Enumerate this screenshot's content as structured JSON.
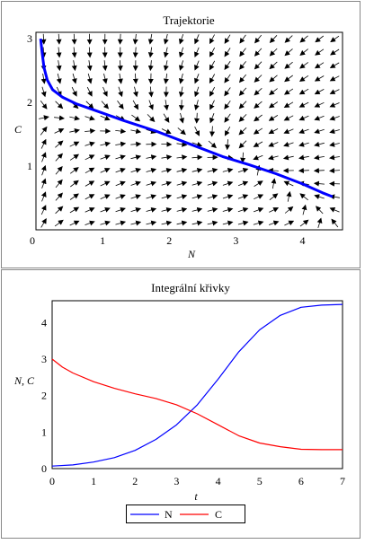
{
  "chart_data": [
    {
      "type": "line",
      "title": "Trajektorie",
      "xlabel": "N",
      "ylabel": "C",
      "xlim": [
        0,
        4.6
      ],
      "ylim": [
        0,
        3.1
      ],
      "xticks": [
        0,
        1,
        2,
        3,
        4
      ],
      "yticks": [
        1,
        2,
        3
      ],
      "direction_field": true,
      "series": [
        {
          "color": "#0000ff",
          "x": [
            0.07,
            0.09,
            0.12,
            0.17,
            0.25,
            0.4,
            0.6,
            0.9,
            1.3,
            1.8,
            2.3,
            2.8,
            3.2,
            3.6,
            4.0,
            4.3,
            4.45
          ],
          "y": [
            3.0,
            2.8,
            2.55,
            2.35,
            2.2,
            2.08,
            1.98,
            1.87,
            1.72,
            1.55,
            1.35,
            1.15,
            1.02,
            0.88,
            0.72,
            0.58,
            0.52
          ]
        }
      ]
    },
    {
      "type": "line",
      "title": "Integrální křivky",
      "xlabel": "t",
      "ylabel": "N, C",
      "xlim": [
        0,
        7
      ],
      "ylim": [
        0,
        4.6
      ],
      "xticks": [
        0,
        1,
        2,
        3,
        4,
        5,
        6,
        7
      ],
      "yticks": [
        0,
        1,
        2,
        3,
        4
      ],
      "legend_position": "bottom",
      "series": [
        {
          "name": "N",
          "color": "#0000ff",
          "x": [
            0,
            0.5,
            1,
            1.5,
            2,
            2.5,
            3,
            3.5,
            4,
            4.5,
            5,
            5.5,
            6,
            6.5,
            7
          ],
          "y": [
            0.07,
            0.1,
            0.18,
            0.3,
            0.5,
            0.8,
            1.2,
            1.75,
            2.45,
            3.2,
            3.8,
            4.2,
            4.42,
            4.48,
            4.5
          ]
        },
        {
          "name": "C",
          "color": "#ff0000",
          "x": [
            0,
            0.25,
            0.5,
            1,
            1.5,
            2,
            2.5,
            3,
            3.5,
            4,
            4.5,
            5,
            5.5,
            6,
            6.5,
            7
          ],
          "y": [
            3.0,
            2.78,
            2.62,
            2.38,
            2.2,
            2.05,
            1.92,
            1.75,
            1.5,
            1.2,
            0.9,
            0.7,
            0.6,
            0.53,
            0.52,
            0.52
          ]
        }
      ]
    }
  ]
}
